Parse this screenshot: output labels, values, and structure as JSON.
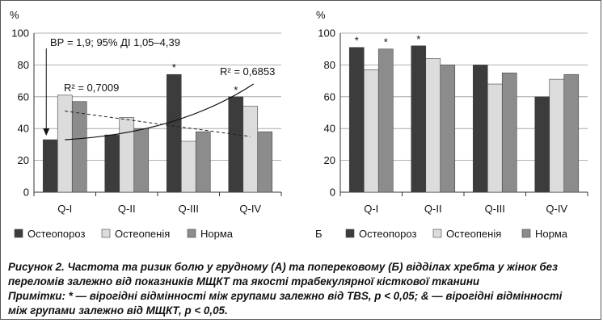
{
  "chart_data": [
    {
      "type": "bar",
      "panel": "А",
      "ylabel": "%",
      "ylim": [
        0,
        100
      ],
      "yticks": [
        0,
        20,
        40,
        60,
        80,
        100
      ],
      "grid": true,
      "categories": [
        "Q-I",
        "Q-II",
        "Q-III",
        "Q-IV"
      ],
      "series": [
        {
          "name": "Остеопороз",
          "color": "#3c3c3c",
          "values": [
            33,
            36,
            74,
            60
          ]
        },
        {
          "name": "Остеопенія",
          "color": "#dcdcdc",
          "values": [
            61,
            47,
            32,
            54
          ]
        },
        {
          "name": "Норма",
          "color": "#8c8c8c",
          "values": [
            57,
            40,
            38,
            38
          ]
        }
      ],
      "markers": [
        {
          "category": "Q-III",
          "series": "Остеопороз",
          "text": "*"
        },
        {
          "category": "Q-IV",
          "series": "Остеопороз",
          "text": "*"
        }
      ],
      "trendlines": [
        {
          "label": "R² = 0,7009",
          "style": "dashed",
          "from": [
            0,
            51
          ],
          "to": [
            3,
            35
          ]
        },
        {
          "label": "R² = 0,6853",
          "style": "solid",
          "from": [
            0,
            33
          ],
          "to": [
            3,
            68
          ],
          "curved": true
        }
      ],
      "annotations": [
        "ВР = 1,9; 95% ДІ 1,05–4,39",
        "R² = 0,7009",
        "R² = 0,6853"
      ],
      "legend": {
        "position": "bottom",
        "items": [
          "Остеопороз",
          "Остеопенія",
          "Норма"
        ]
      }
    },
    {
      "type": "bar",
      "panel": "Б",
      "ylabel": "%",
      "ylim": [
        0,
        100
      ],
      "yticks": [
        0,
        20,
        40,
        60,
        80,
        100
      ],
      "grid": true,
      "categories": [
        "Q-I",
        "Q-II",
        "Q-III",
        "Q-IV"
      ],
      "series": [
        {
          "name": "Остеопороз",
          "color": "#3c3c3c",
          "values": [
            91,
            92,
            80,
            60
          ]
        },
        {
          "name": "Остеопенія",
          "color": "#dcdcdc",
          "values": [
            77,
            84,
            68,
            71
          ]
        },
        {
          "name": "Норма",
          "color": "#8c8c8c",
          "values": [
            90,
            80,
            75,
            74
          ]
        }
      ],
      "markers": [
        {
          "category": "Q-I",
          "series": "Остеопороз",
          "text": "*"
        },
        {
          "category": "Q-I",
          "series": "Норма",
          "text": "*"
        },
        {
          "category": "Q-II",
          "series": "Остеопороз",
          "text": "*"
        }
      ],
      "legend": {
        "position": "bottom",
        "label": "Б",
        "items": [
          "Остеопороз",
          "Остеопенія",
          "Норма"
        ]
      }
    }
  ],
  "caption": {
    "line1": "Рисунок 2. Частота та ризик болю у грудному (А) та поперековому (Б) відділах хребта у жінок без",
    "line2": "переломів залежно від показників МЩКТ та якості трабекулярної кісткової тканини",
    "line3": "Примітки: * — вірогідні відмінності між групами залежно від TBS, р < 0,05; & — вірогідні відмінності",
    "line4": "між групами залежно від МЩКТ, р < 0,05."
  }
}
